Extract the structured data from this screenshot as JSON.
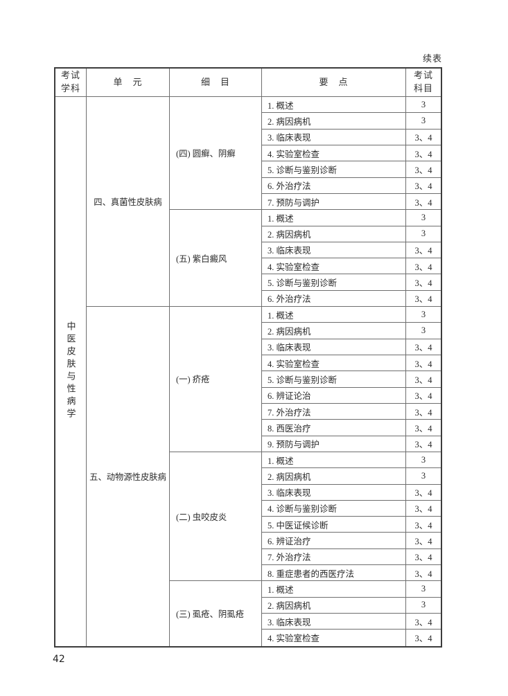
{
  "page": {
    "continued_label": "续表",
    "page_number": "42"
  },
  "table": {
    "header": {
      "subject": "考试\n学科",
      "unit": "单　元",
      "detail": "细　目",
      "points": "要　点",
      "exam_subjects": "考试\n科目"
    },
    "subject": "中医皮肤与性病学",
    "units": [
      {
        "name": "四、真菌性皮肤病",
        "details": [
          {
            "name": "(四) 圆癣、阴癣",
            "points": [
              {
                "text": "1. 概述",
                "score": "3"
              },
              {
                "text": "2. 病因病机",
                "score": "3"
              },
              {
                "text": "3. 临床表现",
                "score": "3、4"
              },
              {
                "text": "4. 实验室检查",
                "score": "3、4"
              },
              {
                "text": "5. 诊断与鉴别诊断",
                "score": "3、4"
              },
              {
                "text": "6. 外治疗法",
                "score": "3、4"
              },
              {
                "text": "7. 预防与调护",
                "score": "3、4"
              }
            ]
          },
          {
            "name": "(五) 紫白癜风",
            "points": [
              {
                "text": "1. 概述",
                "score": "3"
              },
              {
                "text": "2. 病因病机",
                "score": "3"
              },
              {
                "text": "3. 临床表现",
                "score": "3、4"
              },
              {
                "text": "4. 实验室检查",
                "score": "3、4"
              },
              {
                "text": "5. 诊断与鉴别诊断",
                "score": "3、4"
              },
              {
                "text": "6. 外治疗法",
                "score": "3、4"
              }
            ]
          }
        ]
      },
      {
        "name": "五、动物源性皮肤病",
        "details": [
          {
            "name": "(一) 疥疮",
            "points": [
              {
                "text": "1. 概述",
                "score": "3"
              },
              {
                "text": "2. 病因病机",
                "score": "3"
              },
              {
                "text": "3. 临床表现",
                "score": "3、4"
              },
              {
                "text": "4. 实验室检查",
                "score": "3、4"
              },
              {
                "text": "5. 诊断与鉴别诊断",
                "score": "3、4"
              },
              {
                "text": "6. 辨证论治",
                "score": "3、4"
              },
              {
                "text": "7. 外治疗法",
                "score": "3、4"
              },
              {
                "text": "8. 西医治疗",
                "score": "3、4"
              },
              {
                "text": "9. 预防与调护",
                "score": "3、4"
              }
            ]
          },
          {
            "name": "(二) 虫咬皮炎",
            "points": [
              {
                "text": "1. 概述",
                "score": "3"
              },
              {
                "text": "2. 病因病机",
                "score": "3"
              },
              {
                "text": "3. 临床表现",
                "score": "3、4"
              },
              {
                "text": "4. 诊断与鉴别诊断",
                "score": "3、4"
              },
              {
                "text": "5. 中医证候诊断",
                "score": "3、4"
              },
              {
                "text": "6. 辨证治疗",
                "score": "3、4"
              },
              {
                "text": "7. 外治疗法",
                "score": "3、4"
              },
              {
                "text": "8. 重症患者的西医疗法",
                "score": "3、4"
              }
            ]
          },
          {
            "name": "(三) 虱疮、阴虱疮",
            "points": [
              {
                "text": "1. 概述",
                "score": "3"
              },
              {
                "text": "2. 病因病机",
                "score": "3"
              },
              {
                "text": "3. 临床表现",
                "score": "3、4"
              },
              {
                "text": "4. 实验室检查",
                "score": "3、4"
              }
            ]
          }
        ]
      }
    ]
  }
}
